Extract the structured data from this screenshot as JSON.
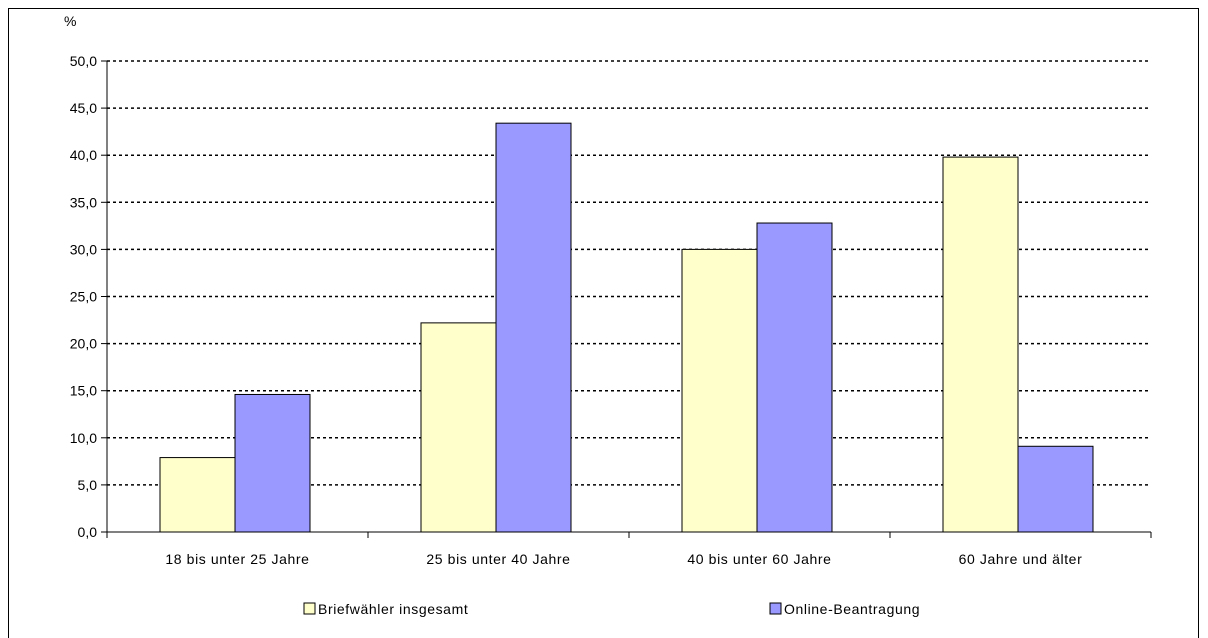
{
  "chart_data": {
    "type": "bar",
    "ylabel": "%",
    "ylim": [
      0,
      50
    ],
    "yticks": [
      "0,0",
      "5,0",
      "10,0",
      "15,0",
      "20,0",
      "25,0",
      "30,0",
      "35,0",
      "40,0",
      "45,0",
      "50,0"
    ],
    "grid": "dotted horizontal",
    "legend_position": "bottom",
    "categories": [
      "18 bis unter 25 Jahre",
      "25 bis unter 40 Jahre",
      "40 bis unter 60 Jahre",
      "60 Jahre und älter"
    ],
    "series": [
      {
        "name": "Briefwähler insgesamt",
        "color": "#ffffcc",
        "values": [
          7.9,
          22.2,
          30.0,
          39.8
        ]
      },
      {
        "name": "Online-Beantragung",
        "color": "#9999ff",
        "values": [
          14.6,
          43.4,
          32.8,
          9.1
        ]
      }
    ]
  }
}
